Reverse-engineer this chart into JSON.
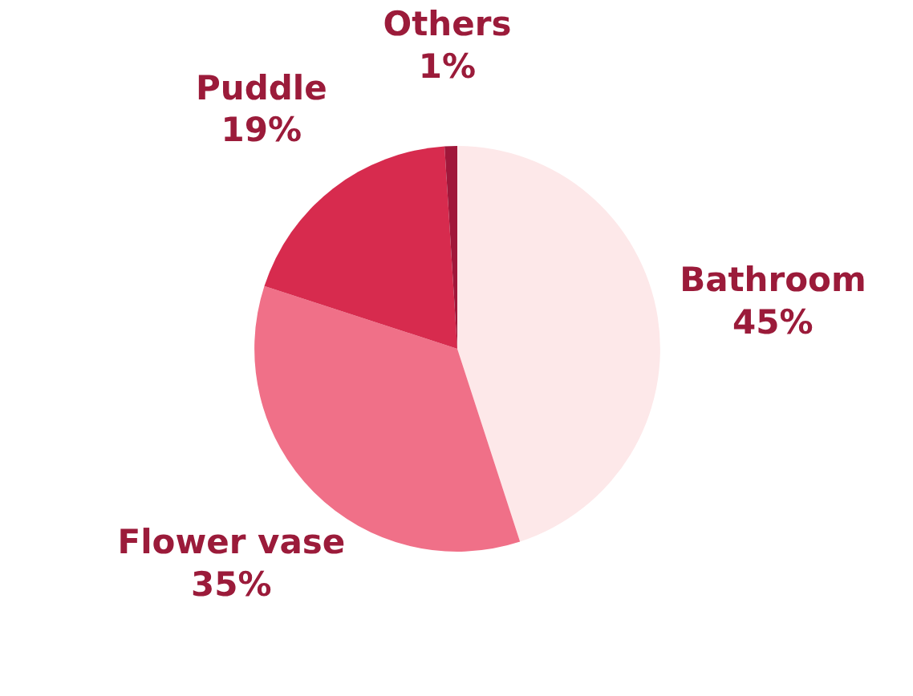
{
  "chart_data": {
    "type": "pie",
    "categories": [
      "Bathroom",
      "Flower vase",
      "Puddle",
      "Others"
    ],
    "values": [
      45,
      35,
      19,
      1
    ],
    "colors": [
      "#fde8e9",
      "#f07088",
      "#d72b4e",
      "#a0173a"
    ],
    "value_labels": [
      "45%",
      "35%",
      "19%",
      "1%"
    ]
  }
}
